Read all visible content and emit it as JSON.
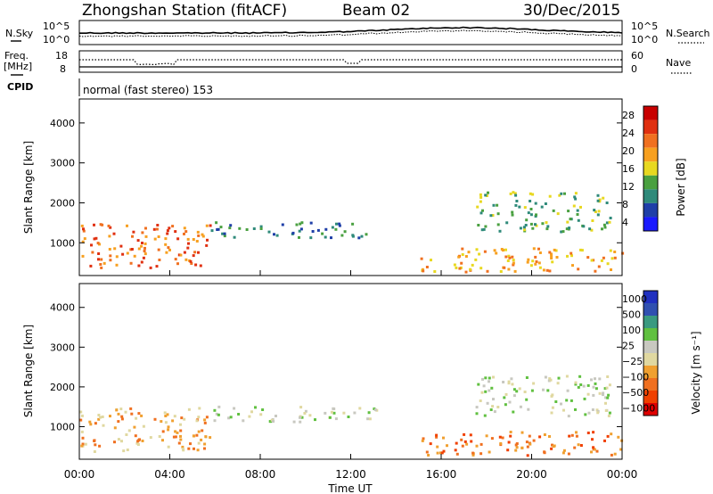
{
  "header": {
    "title": "Zhongshan Station (fitACF)",
    "beam": "Beam 02",
    "date": "30/Dec/2015"
  },
  "noise_panel": {
    "left_label": "N.Sky",
    "left_ticks": [
      "10^5",
      "10^0"
    ],
    "right_label": "N.Search",
    "right_ticks": [
      "10^5",
      "10^0"
    ]
  },
  "freq_panel": {
    "left_label_1": "Freq.",
    "left_label_2": "[MHz]",
    "left_ticks": [
      "18",
      "8"
    ],
    "right_label": "Nave",
    "right_ticks": [
      "60",
      "0"
    ]
  },
  "cpid_panel": {
    "label": "CPID",
    "text": "normal (fast stereo) 153"
  },
  "colors": {
    "power": [
      "#1a1aff",
      "#1f3fa8",
      "#2f8a7a",
      "#4aa040",
      "#e8d820",
      "#f7a020",
      "#f07020",
      "#e03010",
      "#c80000"
    ],
    "velocity": [
      "#e00000",
      "#f04000",
      "#f07020",
      "#f0a030",
      "#e0d8a0",
      "#c8c8c0",
      "#60c040",
      "#3a9a80",
      "#3050b0",
      "#2030c0"
    ]
  },
  "chart_data": [
    {
      "type": "heatmap",
      "title": "",
      "ylabel": "Slant Range [km]",
      "xlabel": "",
      "ylim": [
        180,
        4600
      ],
      "y_ticks": [
        "1000",
        "2000",
        "3000",
        "4000"
      ],
      "x_ticks": [],
      "colorbar": {
        "label": "Power [dB]",
        "ticks": [
          "28",
          "24",
          "20",
          "16",
          "12",
          "8",
          "4"
        ]
      },
      "regions": [
        {
          "t_start": 0.0,
          "t_end": 5.8,
          "r_start": 400,
          "r_end": 1500,
          "level": 6
        },
        {
          "t_start": 5.8,
          "t_end": 13.2,
          "r_start": 1150,
          "r_end": 1550,
          "level": 2
        },
        {
          "t_start": 15.0,
          "t_end": 24.0,
          "r_start": 300,
          "r_end": 900,
          "level": 5
        },
        {
          "t_start": 17.5,
          "t_end": 23.5,
          "r_start": 1300,
          "r_end": 2300,
          "level": 3
        }
      ]
    },
    {
      "type": "heatmap",
      "title": "",
      "ylabel": "Slant Range [km]",
      "xlabel": "Time UT",
      "ylim": [
        180,
        4600
      ],
      "y_ticks": [
        "1000",
        "2000",
        "3000",
        "4000"
      ],
      "x_ticks": [
        "00:00",
        "04:00",
        "08:00",
        "12:00",
        "16:00",
        "20:00",
        "00:00"
      ],
      "colorbar": {
        "label": "Velocity [m s⁻¹]",
        "ticks": [
          "1000",
          "500",
          "100",
          "25",
          "−25",
          "−100",
          "−500",
          "−1000"
        ]
      },
      "regions": [
        {
          "t_start": 0.0,
          "t_end": 5.8,
          "r_start": 400,
          "r_end": 1500,
          "level": 3
        },
        {
          "t_start": 5.8,
          "t_end": 13.2,
          "r_start": 1150,
          "r_end": 1550,
          "level": 5
        },
        {
          "t_start": 15.0,
          "t_end": 24.0,
          "r_start": 300,
          "r_end": 900,
          "level": 2
        },
        {
          "t_start": 17.5,
          "t_end": 23.5,
          "r_start": 1300,
          "r_end": 2300,
          "level": 5
        }
      ]
    }
  ]
}
